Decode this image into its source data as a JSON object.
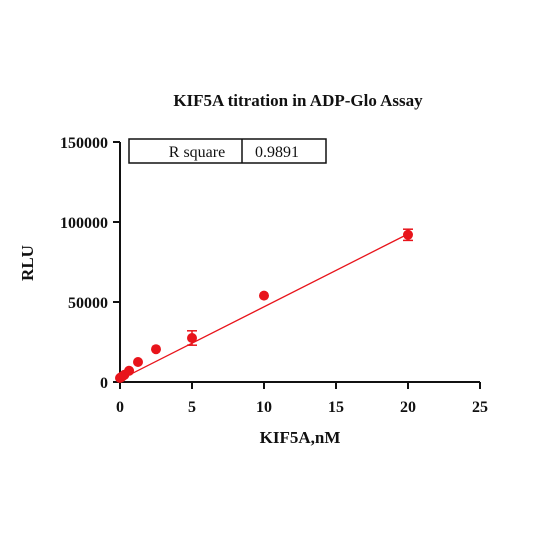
{
  "chart_data": {
    "type": "scatter",
    "title": "KIF5A titration in ADP-Glo Assay",
    "xlabel": "KIF5A,nM",
    "ylabel": "RLU",
    "xlim": [
      0,
      25
    ],
    "ylim": [
      0,
      150000
    ],
    "xticks": [
      0,
      5,
      10,
      15,
      20,
      25
    ],
    "yticks": [
      0,
      50000,
      100000,
      150000
    ],
    "ytick_labels": [
      "0",
      "50000",
      "100000",
      "150000"
    ],
    "grid": false,
    "series": [
      {
        "points": [
          {
            "x": 0,
            "y": 2500,
            "err": 0
          },
          {
            "x": 0.08,
            "y": 3000,
            "err": 0
          },
          {
            "x": 0.16,
            "y": 3500,
            "err": 0
          },
          {
            "x": 0.31,
            "y": 4500,
            "err": 0
          },
          {
            "x": 0.63,
            "y": 7000,
            "err": 0
          },
          {
            "x": 1.25,
            "y": 12500,
            "err": 0
          },
          {
            "x": 2.5,
            "y": 20500,
            "err": 0
          },
          {
            "x": 5,
            "y": 27500,
            "err": 4500
          },
          {
            "x": 10,
            "y": 54000,
            "err": 0
          },
          {
            "x": 20,
            "y": 92000,
            "err": 3500
          }
        ],
        "color": "#e8141b"
      }
    ],
    "fit_line": {
      "x": [
        0,
        20
      ],
      "y": [
        1500,
        92500
      ],
      "color": "#e8141b"
    },
    "annotation": {
      "label": "R square",
      "value": "0.9891"
    }
  }
}
